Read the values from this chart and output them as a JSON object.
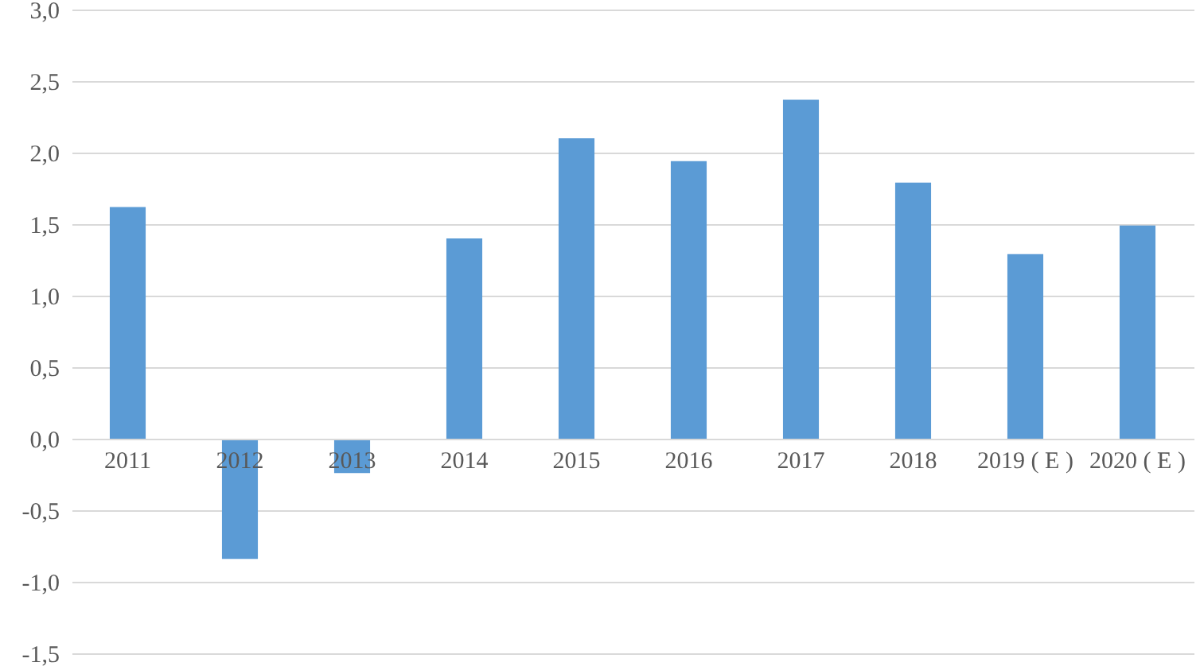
{
  "chart_data": {
    "type": "bar",
    "categories": [
      "2011",
      "2012",
      "2013",
      "2014",
      "2015",
      "2016",
      "2017",
      "2018",
      "2019 ( E )",
      "2020 ( E )"
    ],
    "values": [
      1.62,
      -0.84,
      -0.24,
      1.4,
      2.1,
      1.94,
      2.37,
      1.79,
      1.29,
      1.49
    ],
    "color": "#5b9bd5",
    "ylim": [
      -1.5,
      3.0
    ],
    "yticks": [
      {
        "value": -1.5,
        "label": "-1,5"
      },
      {
        "value": -1.0,
        "label": "-1,0"
      },
      {
        "value": -0.5,
        "label": "-0,5"
      },
      {
        "value": 0,
        "label": "0,0"
      },
      {
        "value": 0.5,
        "label": "0,5"
      },
      {
        "value": 1.0,
        "label": "1,0"
      },
      {
        "value": 1.5,
        "label": "1,5"
      },
      {
        "value": 2.0,
        "label": "2,0"
      },
      {
        "value": 2.5,
        "label": "2,5"
      },
      {
        "value": 3.0,
        "label": "3,0"
      }
    ],
    "grid": true
  }
}
